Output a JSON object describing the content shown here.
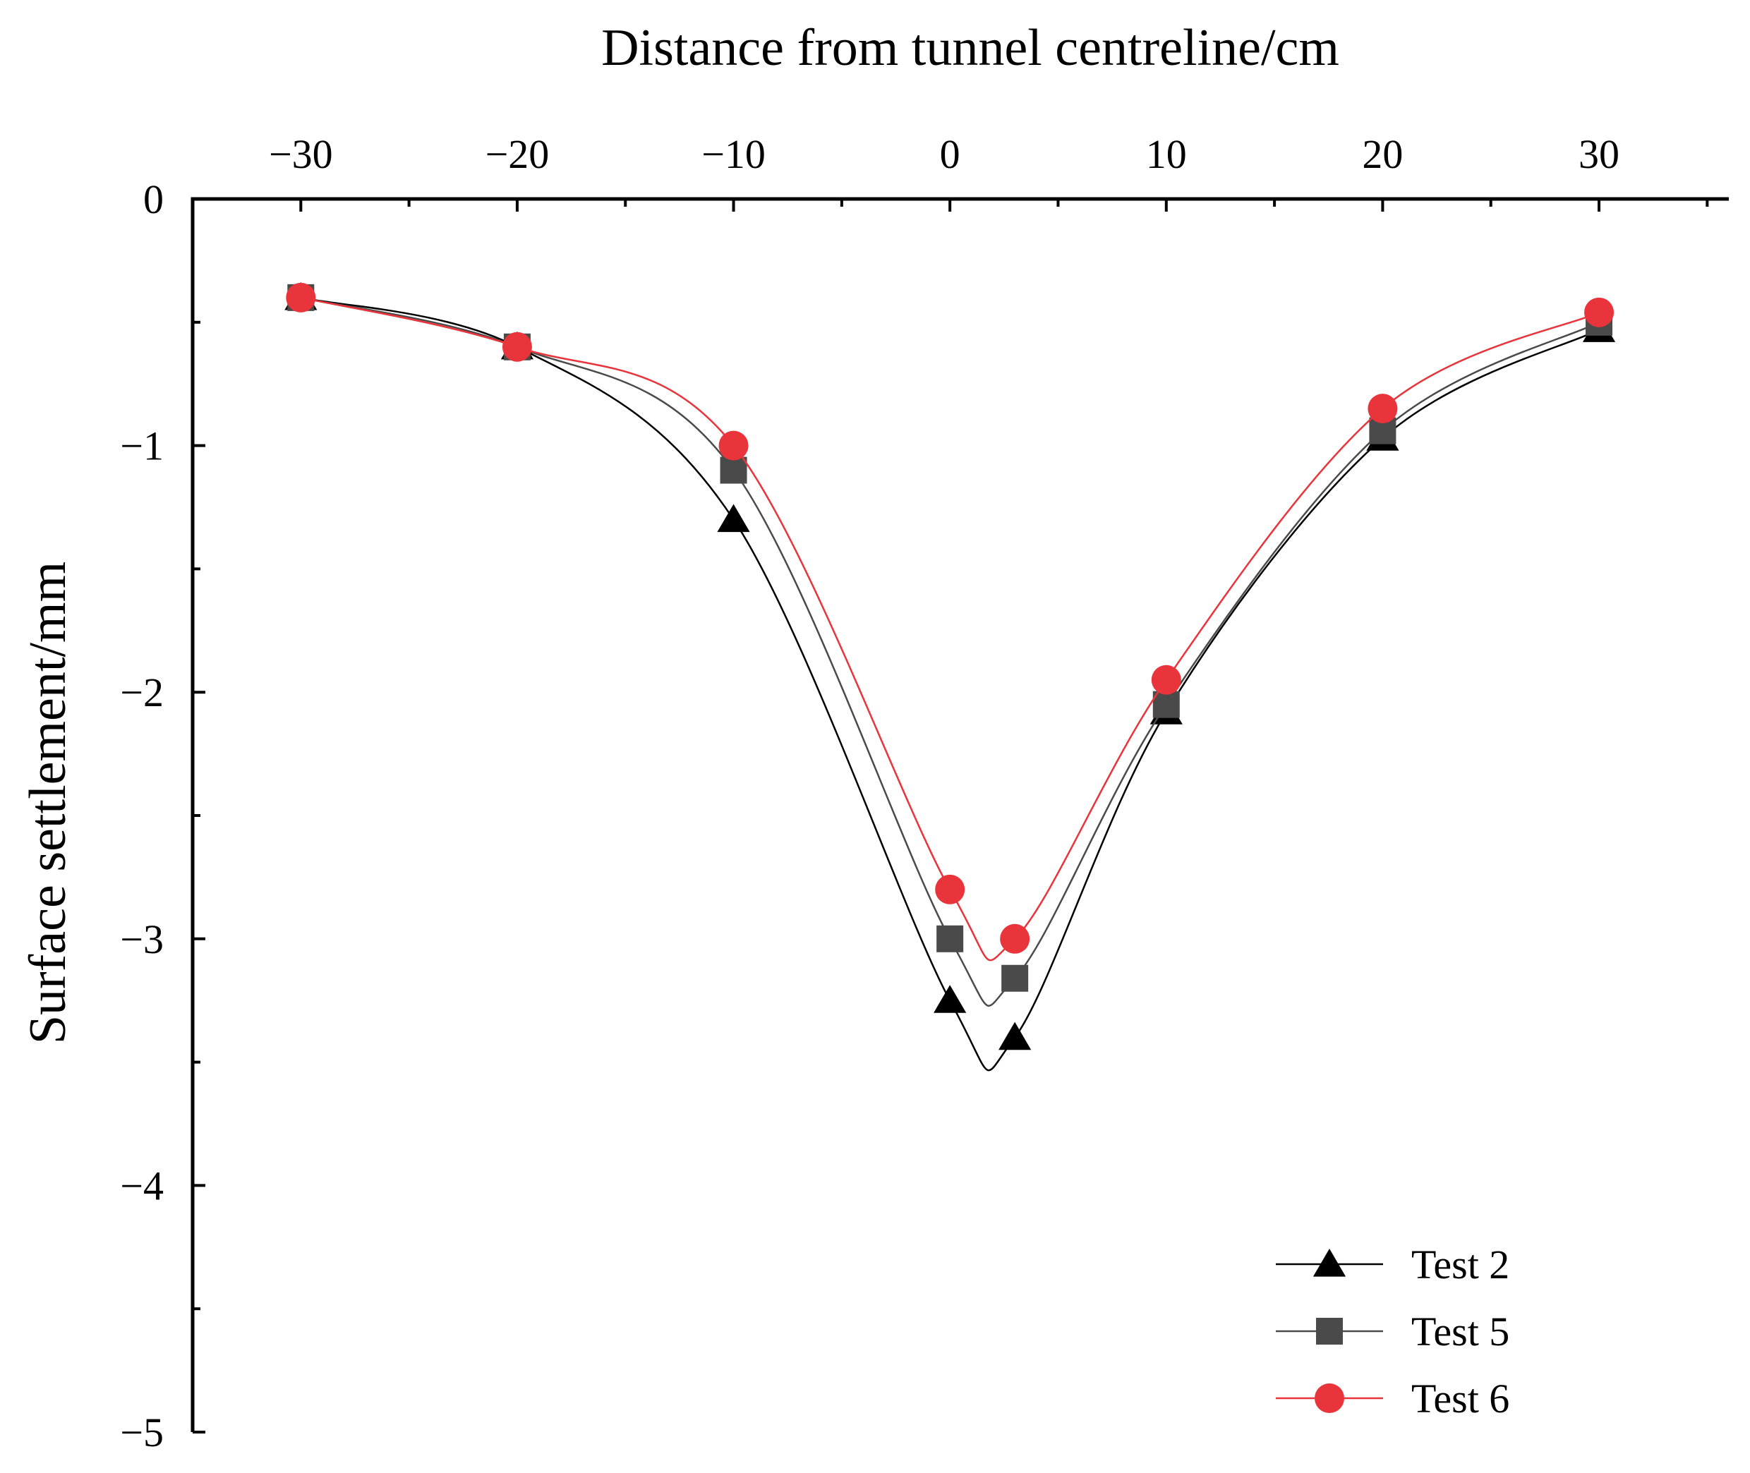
{
  "chart_data": {
    "type": "line",
    "title": "",
    "xlabel": "Distance from tunnel centreline/cm",
    "ylabel": "Surface settlement/mm",
    "xlim": [
      -35,
      36
    ],
    "ylim": [
      -5,
      0
    ],
    "x_ticks": [
      -30,
      -20,
      -10,
      0,
      10,
      20,
      30
    ],
    "x_tick_labels": [
      "−30",
      "−20",
      "−10",
      "0",
      "10",
      "20",
      "30"
    ],
    "y_ticks": [
      0,
      -1,
      -2,
      -3,
      -4,
      -5
    ],
    "y_tick_labels": [
      "0",
      "−1",
      "−2",
      "−3",
      "−4",
      "−5"
    ],
    "x_axis_position": "top",
    "grid": false,
    "legend_position": "bottom-right",
    "x": [
      -30,
      -20,
      -10,
      0,
      3,
      10,
      20,
      30
    ],
    "series": [
      {
        "name": "Test 2",
        "marker": "triangle",
        "color": "#000000",
        "values": [
          -0.4,
          -0.6,
          -1.3,
          -3.25,
          -3.4,
          -2.08,
          -0.97,
          -0.53
        ]
      },
      {
        "name": "Test 5",
        "marker": "square",
        "color": "#4a4a4a",
        "values": [
          -0.4,
          -0.6,
          -1.1,
          -3.0,
          -3.16,
          -2.05,
          -0.94,
          -0.5
        ]
      },
      {
        "name": "Test 6",
        "marker": "circle",
        "color": "#e8343a",
        "values": [
          -0.4,
          -0.6,
          -1.0,
          -2.8,
          -3.0,
          -1.95,
          -0.85,
          -0.46
        ]
      }
    ]
  }
}
